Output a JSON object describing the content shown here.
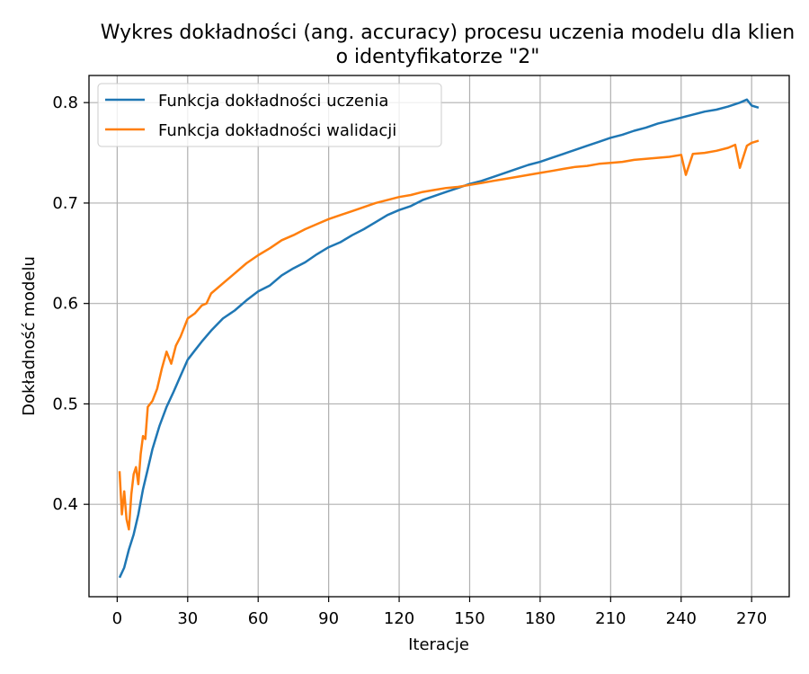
{
  "chart_data": {
    "type": "line",
    "title_line1": "Wykres dokładności (ang. accuracy) procesu uczenia modelu dla klien",
    "title_line2": "o identyfikatorze \"2\"",
    "xlabel": "Iteracje",
    "ylabel": "Dokładność modelu",
    "xlim": [
      -12,
      286
    ],
    "ylim": [
      0.308,
      0.827
    ],
    "xticks": [
      0,
      30,
      60,
      90,
      120,
      150,
      180,
      210,
      240,
      270
    ],
    "yticks": [
      0.4,
      0.5,
      0.6,
      0.7,
      0.8
    ],
    "xtick_labels": [
      "0",
      "30",
      "60",
      "90",
      "120",
      "150",
      "180",
      "210",
      "240",
      "270"
    ],
    "ytick_labels": [
      "0.4",
      "0.5",
      "0.6",
      "0.7",
      "0.8"
    ],
    "grid": true,
    "legend_position": "upper-left",
    "series": [
      {
        "name": "Funkcja dokładności uczenia",
        "color": "#1f77b4",
        "x": [
          1,
          3,
          5,
          7,
          9,
          11,
          13,
          15,
          18,
          21,
          24,
          27,
          30,
          33,
          36,
          40,
          45,
          50,
          55,
          60,
          65,
          70,
          75,
          80,
          85,
          90,
          95,
          100,
          105,
          110,
          115,
          120,
          125,
          130,
          135,
          140,
          145,
          150,
          155,
          160,
          165,
          170,
          175,
          180,
          185,
          190,
          195,
          200,
          205,
          210,
          215,
          220,
          225,
          230,
          235,
          240,
          245,
          250,
          255,
          260,
          265,
          268,
          270,
          273
        ],
        "y": [
          0.327,
          0.337,
          0.355,
          0.37,
          0.39,
          0.415,
          0.435,
          0.455,
          0.478,
          0.497,
          0.512,
          0.528,
          0.544,
          0.553,
          0.562,
          0.573,
          0.585,
          0.593,
          0.603,
          0.612,
          0.618,
          0.628,
          0.635,
          0.641,
          0.649,
          0.656,
          0.661,
          0.668,
          0.674,
          0.681,
          0.688,
          0.693,
          0.697,
          0.703,
          0.707,
          0.711,
          0.715,
          0.719,
          0.722,
          0.726,
          0.73,
          0.734,
          0.738,
          0.741,
          0.745,
          0.749,
          0.753,
          0.757,
          0.761,
          0.765,
          0.768,
          0.772,
          0.775,
          0.779,
          0.782,
          0.785,
          0.788,
          0.791,
          0.793,
          0.796,
          0.8,
          0.803,
          0.797,
          0.795
        ]
      },
      {
        "name": "Funkcja dokładności walidacji",
        "color": "#ff7f0e",
        "x": [
          1,
          2,
          3,
          4,
          5,
          6,
          7,
          8,
          9,
          10,
          11,
          12,
          13,
          15,
          17,
          19,
          21,
          23,
          25,
          27,
          30,
          33,
          36,
          38,
          40,
          45,
          50,
          55,
          60,
          65,
          70,
          75,
          80,
          85,
          90,
          95,
          100,
          105,
          110,
          115,
          120,
          125,
          130,
          135,
          140,
          145,
          150,
          155,
          160,
          165,
          170,
          175,
          180,
          185,
          190,
          195,
          200,
          205,
          210,
          215,
          220,
          225,
          230,
          235,
          240,
          242,
          245,
          250,
          255,
          260,
          263,
          265,
          268,
          270,
          273
        ],
        "y": [
          0.433,
          0.39,
          0.413,
          0.385,
          0.375,
          0.41,
          0.43,
          0.437,
          0.42,
          0.45,
          0.468,
          0.465,
          0.497,
          0.503,
          0.515,
          0.535,
          0.552,
          0.54,
          0.558,
          0.567,
          0.585,
          0.59,
          0.598,
          0.6,
          0.61,
          0.62,
          0.63,
          0.64,
          0.648,
          0.655,
          0.663,
          0.668,
          0.674,
          0.679,
          0.684,
          0.688,
          0.692,
          0.696,
          0.7,
          0.703,
          0.706,
          0.708,
          0.711,
          0.713,
          0.715,
          0.716,
          0.718,
          0.72,
          0.722,
          0.724,
          0.726,
          0.728,
          0.73,
          0.732,
          0.734,
          0.736,
          0.737,
          0.739,
          0.74,
          0.741,
          0.743,
          0.744,
          0.745,
          0.746,
          0.748,
          0.728,
          0.749,
          0.75,
          0.752,
          0.755,
          0.758,
          0.735,
          0.757,
          0.76,
          0.762
        ]
      }
    ]
  }
}
